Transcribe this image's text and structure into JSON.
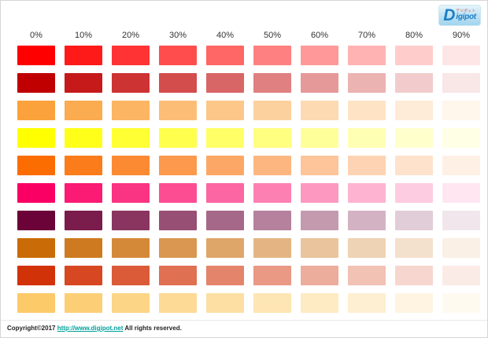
{
  "chart_data": {
    "type": "heatmap",
    "columns": [
      "0%",
      "10%",
      "20%",
      "30%",
      "40%",
      "50%",
      "60%",
      "70%",
      "80%",
      "90%"
    ],
    "rows": [
      {
        "name": "vivid-red",
        "base": "#FF0000",
        "tints": [
          "#FF0000",
          "#FF1A1A",
          "#FF3333",
          "#FF4D4D",
          "#FF6666",
          "#FF8080",
          "#FF9999",
          "#FFB3B3",
          "#FFCCCC",
          "#FFE6E6"
        ]
      },
      {
        "name": "dark-red",
        "base": "#C00000",
        "tints": [
          "#C00000",
          "#C61A1A",
          "#CD3333",
          "#D34D4D",
          "#D96666",
          "#E08080",
          "#E69999",
          "#ECB3B3",
          "#F2CCCC",
          "#F9E6E6"
        ]
      },
      {
        "name": "soft-orange",
        "base": "#FBA23C",
        "tints": [
          "#FBA23C",
          "#FBAB50",
          "#FCB563",
          "#FCBE77",
          "#FDC78A",
          "#FDD19E",
          "#FDDAB1",
          "#FEE3C5",
          "#FEECD8",
          "#FFF6EC"
        ]
      },
      {
        "name": "yellow",
        "base": "#FFFF00",
        "tints": [
          "#FFFF00",
          "#FFFF1A",
          "#FFFF33",
          "#FFFF4D",
          "#FFFF66",
          "#FFFF80",
          "#FFFF99",
          "#FFFFB3",
          "#FFFFCC",
          "#FFFFE6"
        ]
      },
      {
        "name": "vivid-orange",
        "base": "#FB6D00",
        "tints": [
          "#FB6D00",
          "#FB7C1A",
          "#FC8A33",
          "#FC994D",
          "#FDA766",
          "#FDB680",
          "#FDC599",
          "#FED3B3",
          "#FEE2CC",
          "#FFF0E6"
        ]
      },
      {
        "name": "vivid-pink",
        "base": "#FA0064",
        "tints": [
          "#FA0064",
          "#FB1A74",
          "#FB3383",
          "#FC4D93",
          "#FC66A2",
          "#FD80B2",
          "#FD99C1",
          "#FEB3D1",
          "#FECCE0",
          "#FFE6F0"
        ]
      },
      {
        "name": "dark-maroon",
        "base": "#6B0338",
        "tints": [
          "#6B0338",
          "#7A1C4C",
          "#893560",
          "#974F74",
          "#A66888",
          "#B5819C",
          "#C49AAF",
          "#D3B3C3",
          "#E1CDD7",
          "#F0E6EB"
        ]
      },
      {
        "name": "brown-orange",
        "base": "#C96B07",
        "tints": [
          "#C96B07",
          "#CE7A20",
          "#D48939",
          "#D99751",
          "#DFA66A",
          "#E4B583",
          "#E9C49C",
          "#EFD3B5",
          "#F4E1CD",
          "#FAF0E6"
        ]
      },
      {
        "name": "brick-red",
        "base": "#D23208",
        "tints": [
          "#D23208",
          "#D74721",
          "#DB5B39",
          "#E07052",
          "#E4846B",
          "#E99984",
          "#EDAD9C",
          "#F2C2B5",
          "#F6D6CE",
          "#FBEBE6"
        ]
      },
      {
        "name": "light-orange",
        "base": "#FCCA68",
        "tints": [
          "#FCCA68",
          "#FCCF77",
          "#FDD586",
          "#FDDA95",
          "#FDDFA4",
          "#FEE5B4",
          "#FEEAC3",
          "#FEEFD2",
          "#FEF4E1",
          "#FFFAF0"
        ]
      }
    ]
  },
  "logo": {
    "initial": "D",
    "text": "igipot",
    "kana": "デジポット",
    "accent_color": "#1A7EC6"
  },
  "footer": {
    "prefix": "Copyright©2017",
    "link": "http://www.digipot.net",
    "suffix": "All rights reserved.",
    "link_color": "#00A099"
  }
}
